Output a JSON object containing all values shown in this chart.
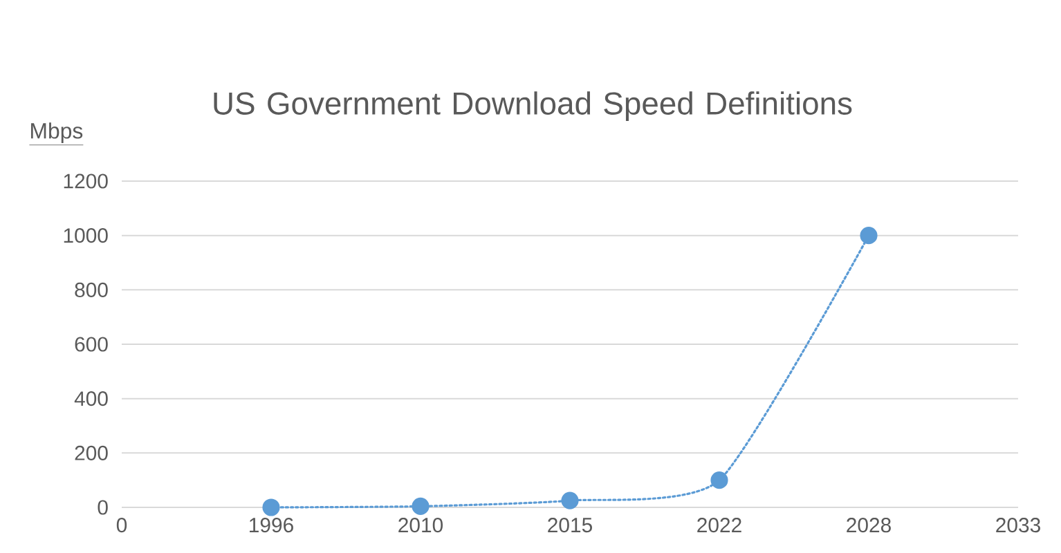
{
  "chart_data": {
    "type": "line",
    "title": "US Government Download Speed Definitions",
    "ylabel": "Mbps",
    "categories": [
      "0",
      "1996",
      "2010",
      "2015",
      "2022",
      "2028",
      "2033"
    ],
    "series": [
      {
        "color": "#5b9bd5",
        "values": [
          null,
          0,
          4,
          25,
          100,
          1000,
          null
        ]
      }
    ],
    "ylim": [
      0,
      1200
    ],
    "yticks": [
      0,
      200,
      400,
      600,
      800,
      1000,
      1200
    ],
    "grid": "y",
    "marker": "circle",
    "line_style": "dotted"
  }
}
